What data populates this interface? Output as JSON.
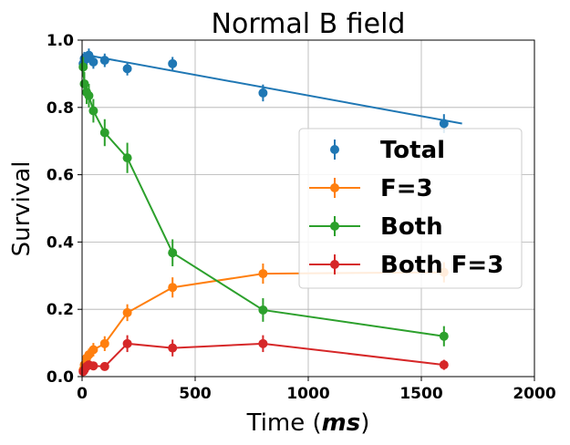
{
  "chart_data": {
    "type": "line",
    "title": "Normal B field",
    "xlabel": "Time (ms)",
    "xlabel_parts": {
      "prefix": "Time (",
      "unit": "ms",
      "suffix": ")"
    },
    "ylabel": "Survival",
    "xlim": [
      0,
      2000
    ],
    "ylim": [
      0.0,
      1.0
    ],
    "xticks": [
      "0",
      "500",
      "1000",
      "1500",
      "2000"
    ],
    "yticks": [
      "0.0",
      "0.2",
      "0.4",
      "0.6",
      "0.8",
      "1.0"
    ],
    "grid": true,
    "legend_position": "center-right",
    "series": [
      {
        "name": "Total",
        "color": "#1f77b4",
        "style": "points",
        "x": [
          5,
          10,
          20,
          30,
          50,
          100,
          200,
          400,
          800,
          1600
        ],
        "y": [
          0.93,
          0.945,
          0.945,
          0.955,
          0.935,
          0.94,
          0.915,
          0.93,
          0.843,
          0.752
        ],
        "yerr": [
          0.02,
          0.02,
          0.02,
          0.02,
          0.02,
          0.02,
          0.02,
          0.02,
          0.025,
          0.028
        ],
        "fit_x": [
          0,
          1680
        ],
        "fit_y": [
          0.958,
          0.752
        ]
      },
      {
        "name": "F=3",
        "color": "#ff7f0e",
        "style": "line",
        "x": [
          5,
          10,
          20,
          30,
          50,
          100,
          200,
          400,
          800,
          1600
        ],
        "y": [
          0.02,
          0.035,
          0.055,
          0.065,
          0.08,
          0.098,
          0.19,
          0.265,
          0.306,
          0.31
        ],
        "yerr": [
          0.015,
          0.015,
          0.018,
          0.018,
          0.02,
          0.022,
          0.025,
          0.03,
          0.03,
          0.03
        ]
      },
      {
        "name": "Both",
        "color": "#2ca02c",
        "style": "line",
        "x": [
          5,
          10,
          20,
          30,
          50,
          100,
          200,
          400,
          800,
          1600
        ],
        "y": [
          0.92,
          0.87,
          0.845,
          0.835,
          0.79,
          0.725,
          0.65,
          0.368,
          0.198,
          0.12
        ],
        "yerr": [
          0.03,
          0.035,
          0.035,
          0.035,
          0.035,
          0.04,
          0.045,
          0.04,
          0.035,
          0.03
        ]
      },
      {
        "name": "Both F=3",
        "color": "#d62728",
        "style": "line",
        "x": [
          5,
          10,
          20,
          30,
          50,
          100,
          200,
          400,
          800,
          1600
        ],
        "y": [
          0.015,
          0.02,
          0.03,
          0.035,
          0.032,
          0.03,
          0.098,
          0.085,
          0.098,
          0.035
        ],
        "yerr": [
          0.012,
          0.012,
          0.012,
          0.012,
          0.012,
          0.012,
          0.025,
          0.025,
          0.025,
          0.015
        ]
      }
    ]
  }
}
